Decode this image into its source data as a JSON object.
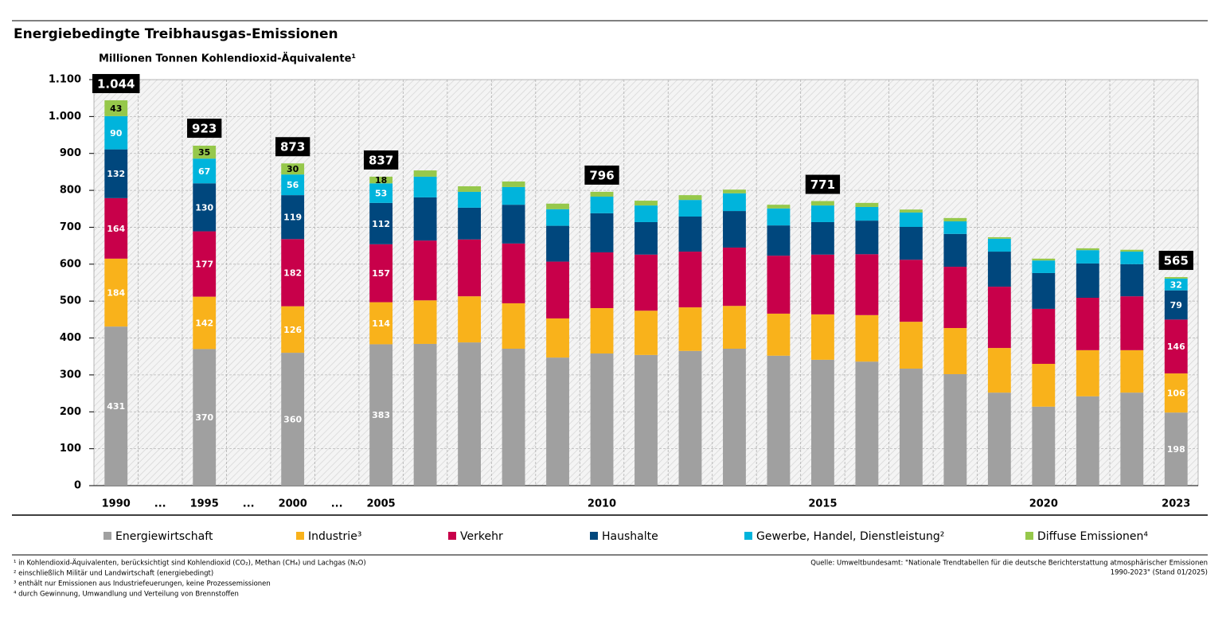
{
  "chart_data": {
    "type": "stacked-bar",
    "title": "Energiebedingte Treibhausgas-Emissionen",
    "y_label": "Millionen Tonnen Kohlendioxid-Äquivalente¹",
    "categories": [
      "1990",
      "...",
      "1995",
      "...",
      "2000",
      "...",
      "2005",
      null,
      null,
      null,
      null,
      "2010",
      null,
      null,
      null,
      null,
      "2015",
      null,
      null,
      null,
      null,
      "2020",
      null,
      null,
      "2023"
    ],
    "ylim": [
      0,
      1100
    ],
    "yticks": [
      0,
      100,
      200,
      300,
      400,
      500,
      600,
      700,
      800,
      900,
      {
        "value": 1000,
        "label": "1.000"
      },
      {
        "value": 1100,
        "label": "1.100"
      }
    ],
    "grid": true,
    "series": [
      {
        "name": "Energiewirtschaft",
        "color": "#a0a0a0",
        "values": [
          431,
          null,
          370,
          null,
          360,
          null,
          383,
          384,
          388,
          371,
          347,
          358,
          354,
          365,
          371,
          352,
          341,
          336,
          317,
          302,
          252,
          214,
          242,
          252,
          198
        ],
        "value_labels": [
          "431",
          null,
          "370",
          null,
          "360",
          null,
          "383",
          null,
          null,
          null,
          null,
          null,
          null,
          null,
          null,
          null,
          null,
          null,
          null,
          null,
          null,
          null,
          null,
          null,
          "198"
        ]
      },
      {
        "name": "Industrie³",
        "color": "#f9b21b",
        "values": [
          184,
          null,
          142,
          null,
          126,
          null,
          114,
          118,
          125,
          123,
          106,
          123,
          120,
          118,
          116,
          114,
          123,
          126,
          127,
          125,
          121,
          116,
          125,
          115,
          106
        ],
        "value_labels": [
          "184",
          null,
          "142",
          null,
          "126",
          null,
          "114",
          null,
          null,
          null,
          null,
          null,
          null,
          null,
          null,
          null,
          null,
          null,
          null,
          null,
          null,
          null,
          null,
          null,
          "106"
        ]
      },
      {
        "name": "Verkehr",
        "color": "#c8004a",
        "values": [
          164,
          null,
          177,
          null,
          182,
          null,
          157,
          162,
          154,
          162,
          154,
          151,
          152,
          151,
          158,
          157,
          162,
          165,
          168,
          166,
          166,
          149,
          142,
          146,
          146
        ],
        "value_labels": [
          "164",
          null,
          "177",
          null,
          "182",
          null,
          "157",
          null,
          null,
          null,
          null,
          null,
          null,
          null,
          null,
          null,
          null,
          null,
          null,
          null,
          null,
          null,
          null,
          null,
          "146"
        ]
      },
      {
        "name": "Haushalte",
        "color": "#00477d",
        "values": [
          132,
          null,
          130,
          null,
          119,
          null,
          112,
          117,
          86,
          105,
          97,
          106,
          88,
          95,
          99,
          82,
          88,
          91,
          89,
          89,
          95,
          97,
          93,
          87,
          79
        ],
        "value_labels": [
          "132",
          null,
          "130",
          null,
          "119",
          null,
          "112",
          null,
          null,
          null,
          null,
          null,
          null,
          null,
          null,
          null,
          null,
          null,
          null,
          null,
          null,
          null,
          null,
          null,
          "79"
        ]
      },
      {
        "name": "Gewerbe, Handel, Dienstleistung²",
        "color": "#00b4dc",
        "values": [
          90,
          null,
          67,
          null,
          56,
          null,
          53,
          56,
          43,
          48,
          45,
          45,
          45,
          45,
          48,
          46,
          45,
          37,
          39,
          34,
          35,
          34,
          36,
          34,
          32
        ],
        "value_labels": [
          "90",
          null,
          "67",
          null,
          "56",
          null,
          "53",
          null,
          null,
          null,
          null,
          null,
          null,
          null,
          null,
          null,
          null,
          null,
          null,
          null,
          null,
          null,
          null,
          null,
          "32"
        ]
      },
      {
        "name": "Diffuse Emissionen⁴",
        "color": "#96c84b",
        "values": [
          43,
          null,
          35,
          null,
          30,
          null,
          18,
          17,
          15,
          15,
          15,
          13,
          13,
          13,
          10,
          10,
          12,
          11,
          8,
          9,
          4,
          5,
          5,
          5,
          4
        ],
        "value_labels": [
          "43",
          null,
          "35",
          null,
          "30",
          null,
          "18",
          null,
          null,
          null,
          null,
          null,
          null,
          null,
          null,
          null,
          null,
          null,
          null,
          null,
          null,
          null,
          null,
          null,
          null
        ]
      }
    ],
    "totals": {
      "values": [
        1044,
        null,
        923,
        null,
        873,
        null,
        837,
        null,
        null,
        null,
        null,
        796,
        null,
        null,
        null,
        null,
        771,
        null,
        null,
        null,
        null,
        null,
        null,
        null,
        565
      ],
      "value_labels": [
        "1.044",
        null,
        "923",
        null,
        "873",
        null,
        "837",
        null,
        null,
        null,
        null,
        "796",
        null,
        null,
        null,
        null,
        "771",
        null,
        null,
        null,
        null,
        null,
        null,
        null,
        "565"
      ]
    }
  },
  "footnotes": [
    "¹ in Kohlendioxid-Äquivalenten, berücksichtigt sind Kohlendioxid (CO₂), Methan (CH₄) und Lachgas (N₂O)",
    "² einschließlich Militär und Landwirtschaft (energiebedingt)",
    "³ enthält nur Emissionen aus Industriefeuerungen, keine Prozessemissionen",
    "⁴ durch Gewinnung, Umwandlung und Verteilung von Brennstoffen"
  ],
  "source": [
    "Quelle: Umweltbundesamt: \"Nationale Trendtabellen für die deutsche Berichterstattung atmosphärischer Emissionen",
    "1990-2023\" (Stand 01/2025)"
  ]
}
